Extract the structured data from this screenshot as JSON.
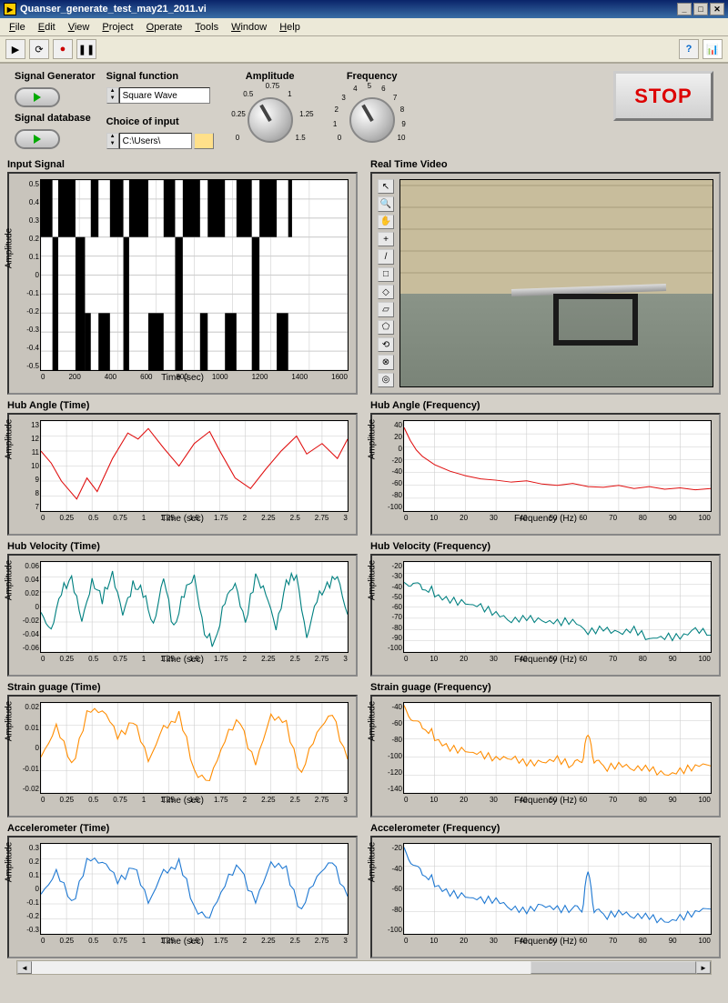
{
  "window": {
    "title": "Quanser_generate_test_may21_2011.vi"
  },
  "menu": [
    "File",
    "Edit",
    "View",
    "Project",
    "Operate",
    "Tools",
    "Window",
    "Help"
  ],
  "toolbar": {
    "run": "▶",
    "cont": "⟳",
    "rec": "●",
    "pause": "❚❚",
    "help": "?"
  },
  "controls": {
    "sig_gen_label": "Signal Generator",
    "sig_db_label": "Signal database",
    "sig_func_label": "Signal function",
    "sig_func_value": "Square Wave",
    "choice_label": "Choice of input",
    "choice_value": "C:\\Users\\",
    "amp_label": "Amplitude",
    "amp_ticks": [
      "0",
      "0.25",
      "0.5",
      "0.75",
      "1",
      "1.25",
      "1.5"
    ],
    "freq_label": "Frequency",
    "freq_ticks": [
      "0",
      "1",
      "2",
      "3",
      "4",
      "5",
      "6",
      "7",
      "8",
      "9",
      "10"
    ],
    "stop_label": "STOP"
  },
  "video_title": "Real Time Video",
  "video_tools": [
    "↖",
    "🔍",
    "✋",
    "+",
    "/",
    "□",
    "◇",
    "▱",
    "⬠",
    "⟲",
    "⊗",
    "◎"
  ],
  "charts": {
    "input": {
      "title": "Input Signal",
      "xlabel": "Time (sec)",
      "ylabel": "Amplitude",
      "ylim": [
        -0.5,
        0.5
      ],
      "yticks": [
        "0.5",
        "0.4",
        "0.3",
        "0.2",
        "0.1",
        "0",
        "-0.1",
        "-0.2",
        "-0.3",
        "-0.4",
        "-0.5"
      ],
      "xticks": [
        "0",
        "200",
        "400",
        "600",
        "800",
        "1000",
        "1200",
        "1400",
        "1600"
      ],
      "type": "square_fill",
      "color": "#000000",
      "segments": [
        [
          0,
          60,
          0.2,
          0.5
        ],
        [
          60,
          90,
          0.2,
          -0.5
        ],
        [
          90,
          180,
          0.2,
          0.5
        ],
        [
          180,
          230,
          0.2,
          -0.5
        ],
        [
          230,
          260,
          -0.2,
          -0.5
        ],
        [
          260,
          300,
          0.2,
          0.5
        ],
        [
          300,
          360,
          -0.2,
          -0.5
        ],
        [
          360,
          430,
          0.2,
          0.5
        ],
        [
          430,
          460,
          0.2,
          -0.5
        ],
        [
          460,
          560,
          0.2,
          0.5
        ],
        [
          560,
          640,
          -0.2,
          -0.5
        ],
        [
          640,
          700,
          0.2,
          0.5
        ],
        [
          700,
          740,
          0.2,
          -0.5
        ],
        [
          740,
          830,
          0.2,
          0.5
        ],
        [
          830,
          870,
          -0.2,
          -0.5
        ],
        [
          870,
          960,
          0.2,
          0.5
        ],
        [
          960,
          1020,
          -0.2,
          -0.5
        ],
        [
          1020,
          1100,
          0.2,
          0.5
        ],
        [
          1100,
          1140,
          0.2,
          -0.5
        ],
        [
          1140,
          1230,
          0.2,
          0.5
        ],
        [
          1230,
          1290,
          -0.2,
          -0.5
        ],
        [
          1290,
          1310,
          0.2,
          0.5
        ]
      ]
    },
    "hub_angle_t": {
      "title": "Hub Angle (Time)",
      "xlabel": "Time (sec)",
      "ylabel": "Amplitude",
      "ylim": [
        7,
        13
      ],
      "yticks": [
        "13",
        "12",
        "11",
        "10",
        "9",
        "8",
        "7"
      ],
      "xticks": [
        "0",
        "0.25",
        "0.5",
        "0.75",
        "1",
        "1.25",
        "1.5",
        "1.75",
        "2",
        "2.25",
        "2.5",
        "2.75",
        "3"
      ],
      "color": "#e01010",
      "type": "line",
      "data": [
        [
          0,
          11
        ],
        [
          0.1,
          10.2
        ],
        [
          0.2,
          9
        ],
        [
          0.35,
          7.8
        ],
        [
          0.45,
          9.2
        ],
        [
          0.55,
          8.3
        ],
        [
          0.7,
          10.5
        ],
        [
          0.85,
          12.2
        ],
        [
          0.95,
          11.8
        ],
        [
          1.05,
          12.5
        ],
        [
          1.2,
          11.2
        ],
        [
          1.35,
          10
        ],
        [
          1.5,
          11.5
        ],
        [
          1.65,
          12.3
        ],
        [
          1.75,
          11
        ],
        [
          1.9,
          9.2
        ],
        [
          2.05,
          8.5
        ],
        [
          2.2,
          9.8
        ],
        [
          2.35,
          11
        ],
        [
          2.5,
          12
        ],
        [
          2.6,
          10.8
        ],
        [
          2.75,
          11.5
        ],
        [
          2.9,
          10.5
        ],
        [
          3,
          11.8
        ]
      ]
    },
    "hub_angle_f": {
      "title": "Hub Angle (Frequency)",
      "xlabel": "Frequency (Hz)",
      "ylabel": "Amplitude",
      "ylim": [
        -100,
        40
      ],
      "yticks": [
        "40",
        "20",
        "0",
        "-20",
        "-40",
        "-60",
        "-80",
        "-100"
      ],
      "xticks": [
        "0",
        "10",
        "20",
        "30",
        "40",
        "50",
        "60",
        "70",
        "80",
        "90",
        "100"
      ],
      "color": "#e01010",
      "type": "line",
      "data": [
        [
          0,
          30
        ],
        [
          2,
          10
        ],
        [
          4,
          -5
        ],
        [
          6,
          -15
        ],
        [
          10,
          -28
        ],
        [
          15,
          -38
        ],
        [
          20,
          -45
        ],
        [
          25,
          -50
        ],
        [
          30,
          -52
        ],
        [
          35,
          -55
        ],
        [
          40,
          -53
        ],
        [
          45,
          -58
        ],
        [
          50,
          -60
        ],
        [
          55,
          -57
        ],
        [
          60,
          -62
        ],
        [
          65,
          -63
        ],
        [
          70,
          -60
        ],
        [
          75,
          -65
        ],
        [
          80,
          -62
        ],
        [
          85,
          -66
        ],
        [
          90,
          -64
        ],
        [
          95,
          -67
        ],
        [
          100,
          -65
        ]
      ]
    },
    "hub_vel_t": {
      "title": "Hub Velocity (Time)",
      "xlabel": "Time (sec)",
      "ylabel": "Amplitude",
      "ylim": [
        -0.06,
        0.06
      ],
      "yticks": [
        "0.06",
        "0.04",
        "0.02",
        "0",
        "-0.02",
        "-0.04",
        "-0.06"
      ],
      "xticks": [
        "0",
        "0.25",
        "0.5",
        "0.75",
        "1",
        "1.25",
        "1.5",
        "1.75",
        "2",
        "2.25",
        "2.5",
        "2.75",
        "3"
      ],
      "color": "#008080",
      "type": "noisy",
      "data": [
        [
          0,
          -0.01
        ],
        [
          0.1,
          -0.03
        ],
        [
          0.2,
          0.02
        ],
        [
          0.3,
          0.04
        ],
        [
          0.4,
          -0.02
        ],
        [
          0.5,
          0.035
        ],
        [
          0.6,
          0.01
        ],
        [
          0.7,
          0.045
        ],
        [
          0.8,
          -0.01
        ],
        [
          0.9,
          0.03
        ],
        [
          1,
          0.02
        ],
        [
          1.1,
          -0.025
        ],
        [
          1.2,
          0.04
        ],
        [
          1.3,
          -0.03
        ],
        [
          1.4,
          0.02
        ],
        [
          1.5,
          0.04
        ],
        [
          1.6,
          -0.035
        ],
        [
          1.7,
          -0.05
        ],
        [
          1.8,
          0.01
        ],
        [
          1.9,
          0.03
        ],
        [
          2,
          -0.02
        ],
        [
          2.1,
          0.04
        ],
        [
          2.2,
          0.02
        ],
        [
          2.3,
          -0.03
        ],
        [
          2.4,
          0.035
        ],
        [
          2.5,
          0.04
        ],
        [
          2.6,
          -0.04
        ],
        [
          2.7,
          0.01
        ],
        [
          2.8,
          0.03
        ],
        [
          2.9,
          0.04
        ],
        [
          3,
          -0.01
        ]
      ]
    },
    "hub_vel_f": {
      "title": "Hub Velocity (Frequency)",
      "xlabel": "Frequency (Hz)",
      "ylabel": "Amplitude",
      "ylim": [
        -100,
        -20
      ],
      "yticks": [
        "-20",
        "-30",
        "-40",
        "-50",
        "-60",
        "-70",
        "-80",
        "-90",
        "-100"
      ],
      "xticks": [
        "0",
        "10",
        "20",
        "30",
        "40",
        "50",
        "60",
        "70",
        "80",
        "90",
        "100"
      ],
      "color": "#008080",
      "type": "noisy",
      "data": [
        [
          0,
          -40
        ],
        [
          3,
          -35
        ],
        [
          6,
          -42
        ],
        [
          10,
          -48
        ],
        [
          15,
          -52
        ],
        [
          20,
          -58
        ],
        [
          25,
          -62
        ],
        [
          30,
          -66
        ],
        [
          35,
          -70
        ],
        [
          40,
          -68
        ],
        [
          45,
          -74
        ],
        [
          50,
          -76
        ],
        [
          55,
          -72
        ],
        [
          60,
          -80
        ],
        [
          65,
          -78
        ],
        [
          70,
          -85
        ],
        [
          75,
          -82
        ],
        [
          80,
          -88
        ],
        [
          85,
          -84
        ],
        [
          90,
          -86
        ],
        [
          95,
          -82
        ],
        [
          100,
          -85
        ]
      ]
    },
    "strain_t": {
      "title": "Strain guage (Time)",
      "xlabel": "Time (sec)",
      "ylabel": "Amplitude",
      "ylim": [
        -0.02,
        0.02
      ],
      "yticks": [
        "0.02",
        "0.01",
        "0",
        "-0.01",
        "-0.02"
      ],
      "xticks": [
        "0",
        "0.25",
        "0.5",
        "0.75",
        "1",
        "1.25",
        "1.5",
        "1.75",
        "2",
        "2.25",
        "2.5",
        "2.75",
        "3"
      ],
      "color": "#ff8c00",
      "type": "noisy",
      "data": [
        [
          0,
          -0.005
        ],
        [
          0.15,
          0.01
        ],
        [
          0.3,
          -0.008
        ],
        [
          0.45,
          0.015
        ],
        [
          0.6,
          0.018
        ],
        [
          0.75,
          0.005
        ],
        [
          0.9,
          0.012
        ],
        [
          1.05,
          -0.005
        ],
        [
          1.2,
          0.008
        ],
        [
          1.35,
          0.015
        ],
        [
          1.5,
          -0.01
        ],
        [
          1.65,
          -0.015
        ],
        [
          1.8,
          0.005
        ],
        [
          1.95,
          0.012
        ],
        [
          2.1,
          -0.008
        ],
        [
          2.25,
          0.015
        ],
        [
          2.4,
          0.01
        ],
        [
          2.55,
          -0.012
        ],
        [
          2.7,
          0.008
        ],
        [
          2.85,
          0.015
        ],
        [
          3,
          -0.005
        ]
      ]
    },
    "strain_f": {
      "title": "Strain guage (Frequency)",
      "xlabel": "Frequency (Hz)",
      "ylabel": "Amplitude",
      "ylim": [
        -140,
        -40
      ],
      "yticks": [
        "-40",
        "-60",
        "-80",
        "-100",
        "-120",
        "-140"
      ],
      "xticks": [
        "0",
        "10",
        "20",
        "30",
        "40",
        "50",
        "60",
        "70",
        "80",
        "90",
        "100"
      ],
      "color": "#ff8c00",
      "type": "noisy",
      "data": [
        [
          0,
          -45
        ],
        [
          3,
          -55
        ],
        [
          6,
          -65
        ],
        [
          10,
          -78
        ],
        [
          15,
          -88
        ],
        [
          20,
          -95
        ],
        [
          25,
          -100
        ],
        [
          30,
          -102
        ],
        [
          35,
          -98
        ],
        [
          40,
          -105
        ],
        [
          45,
          -108
        ],
        [
          50,
          -105
        ],
        [
          55,
          -110
        ],
        [
          58,
          -108
        ],
        [
          60,
          -70
        ],
        [
          62,
          -108
        ],
        [
          65,
          -112
        ],
        [
          70,
          -110
        ],
        [
          75,
          -115
        ],
        [
          80,
          -112
        ],
        [
          85,
          -118
        ],
        [
          90,
          -115
        ],
        [
          95,
          -112
        ],
        [
          100,
          -110
        ]
      ]
    },
    "accel_t": {
      "title": "Accelerometer (Time)",
      "xlabel": "Time (sec)",
      "ylabel": "Amplitude",
      "ylim": [
        -0.3,
        0.3
      ],
      "yticks": [
        "0.3",
        "0.2",
        "0.1",
        "0",
        "-0.1",
        "-0.2",
        "-0.3"
      ],
      "xticks": [
        "0",
        "0.25",
        "0.5",
        "0.75",
        "1",
        "1.25",
        "1.5",
        "1.75",
        "2",
        "2.25",
        "2.5",
        "2.75",
        "3"
      ],
      "color": "#1e78d2",
      "type": "noisy",
      "data": [
        [
          0,
          -0.05
        ],
        [
          0.15,
          0.12
        ],
        [
          0.3,
          -0.1
        ],
        [
          0.45,
          0.18
        ],
        [
          0.6,
          0.2
        ],
        [
          0.75,
          0.05
        ],
        [
          0.9,
          0.15
        ],
        [
          1.05,
          -0.08
        ],
        [
          1.2,
          0.1
        ],
        [
          1.35,
          0.18
        ],
        [
          1.5,
          -0.12
        ],
        [
          1.65,
          -0.2
        ],
        [
          1.8,
          0.05
        ],
        [
          1.95,
          0.15
        ],
        [
          2.1,
          -0.1
        ],
        [
          2.25,
          0.18
        ],
        [
          2.4,
          0.12
        ],
        [
          2.55,
          -0.15
        ],
        [
          2.7,
          0.1
        ],
        [
          2.85,
          0.18
        ],
        [
          3,
          -0.05
        ]
      ]
    },
    "accel_f": {
      "title": "Accelerometer (Frequency)",
      "xlabel": "Frequency (Hz)",
      "ylabel": "Amplitude",
      "ylim": [
        -100,
        -20
      ],
      "yticks": [
        "-20",
        "-40",
        "-60",
        "-80",
        "-100"
      ],
      "xticks": [
        "0",
        "10",
        "20",
        "30",
        "40",
        "50",
        "60",
        "70",
        "80",
        "90",
        "100"
      ],
      "color": "#1e78d2",
      "type": "noisy",
      "data": [
        [
          0,
          -25
        ],
        [
          3,
          -35
        ],
        [
          6,
          -45
        ],
        [
          10,
          -55
        ],
        [
          15,
          -62
        ],
        [
          20,
          -68
        ],
        [
          25,
          -72
        ],
        [
          30,
          -70
        ],
        [
          35,
          -75
        ],
        [
          40,
          -78
        ],
        [
          45,
          -76
        ],
        [
          50,
          -80
        ],
        [
          55,
          -78
        ],
        [
          58,
          -82
        ],
        [
          60,
          -40
        ],
        [
          62,
          -82
        ],
        [
          65,
          -84
        ],
        [
          70,
          -82
        ],
        [
          75,
          -86
        ],
        [
          80,
          -84
        ],
        [
          85,
          -88
        ],
        [
          90,
          -85
        ],
        [
          95,
          -82
        ],
        [
          100,
          -78
        ]
      ]
    }
  }
}
